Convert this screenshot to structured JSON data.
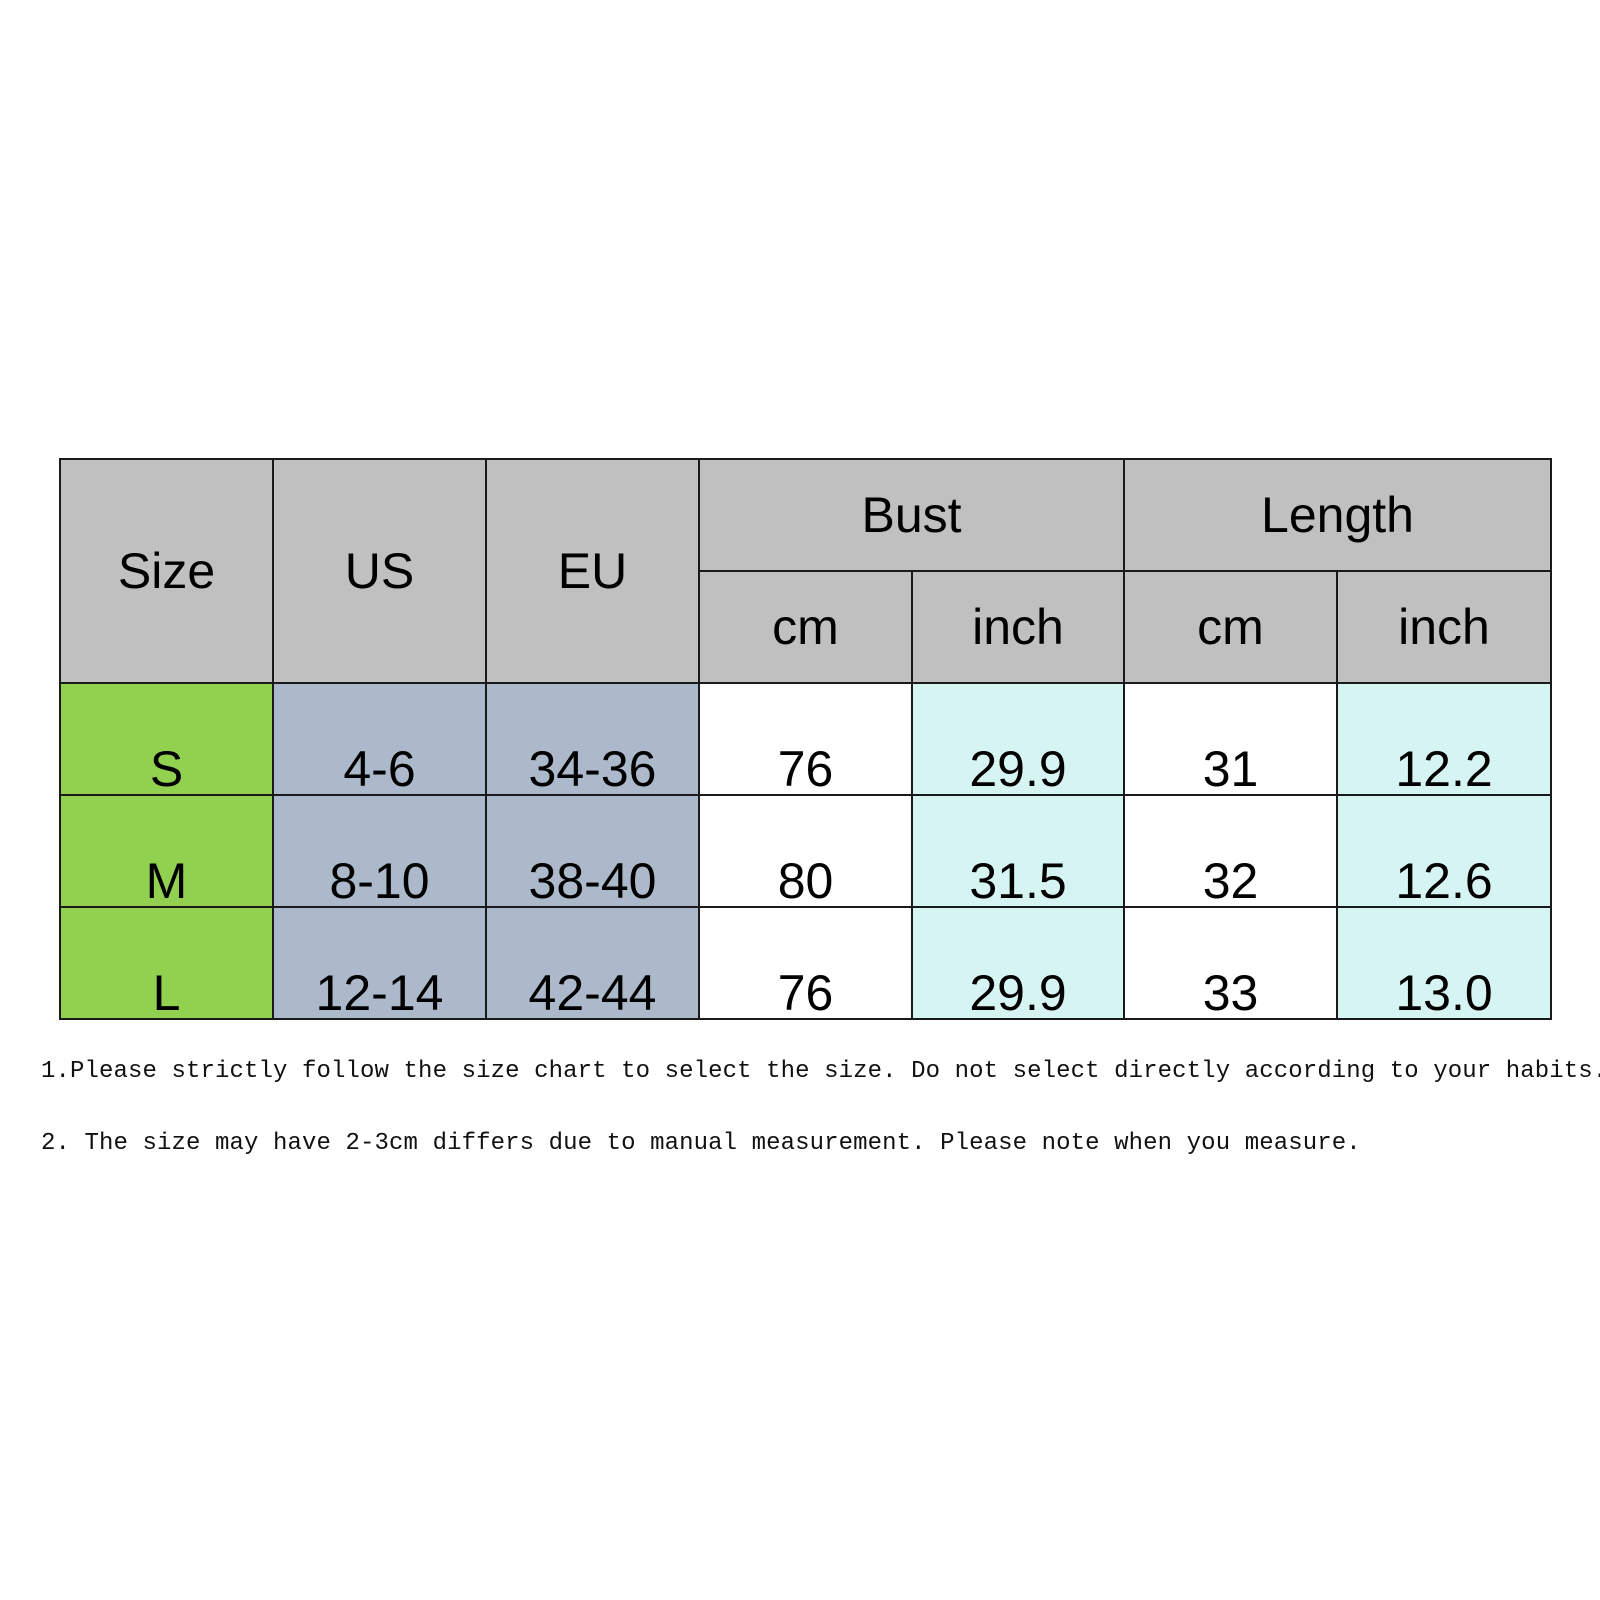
{
  "table": {
    "headers": {
      "size": "Size",
      "us": "US",
      "eu": "EU",
      "bust": "Bust",
      "length": "Length",
      "bust_cm": "cm",
      "bust_inch": "inch",
      "length_cm": "cm",
      "length_inch": "inch"
    },
    "rows": [
      {
        "size": "S",
        "us": "4-6",
        "eu": "34-36",
        "bust_cm": "76",
        "bust_inch": "29.9",
        "length_cm": "31",
        "length_inch": "12.2"
      },
      {
        "size": "M",
        "us": "8-10",
        "eu": "38-40",
        "bust_cm": "80",
        "bust_inch": "31.5",
        "length_cm": "32",
        "length_inch": "12.6"
      },
      {
        "size": "L",
        "us": "12-14",
        "eu": "42-44",
        "bust_cm": "76",
        "bust_inch": "29.9",
        "length_cm": "33",
        "length_inch": "13.0"
      }
    ]
  },
  "notes": [
    "1.Please strictly follow the size chart to select the size. Do not select directly according to your habits.",
    "2. The size may have 2-3cm differs due to manual measurement. Please note when you measure."
  ],
  "colors": {
    "header_bg": "#c0c0c0",
    "size_column_bg": "#92d050",
    "region_column_bg": "#acb9ca",
    "cm_column_bg": "#ffffff",
    "inch_column_bg": "#d5f4f2",
    "border": "#1a1a1a"
  }
}
